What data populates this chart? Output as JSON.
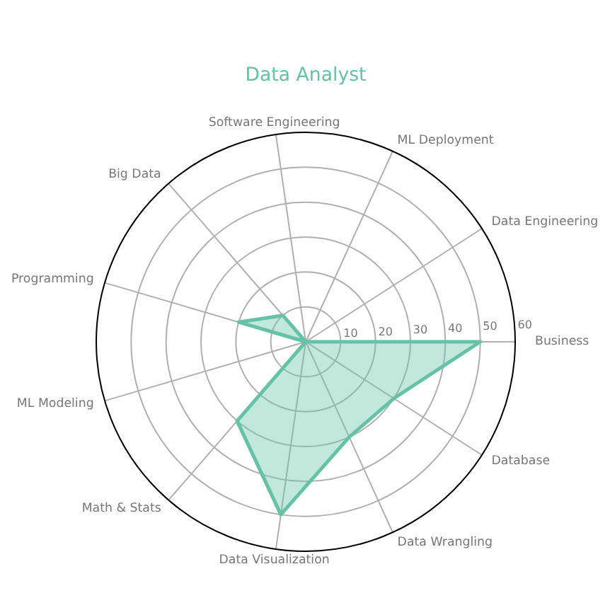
{
  "chart_data": {
    "type": "radar",
    "title": "Data Analyst",
    "categories": [
      "ML Deployment",
      "Data Engineering",
      "Business",
      "Database",
      "Data Wrangling",
      "Data Visualization",
      "Math & Stats",
      "ML Modeling",
      "Programming",
      "Big Data",
      "Software Engineering"
    ],
    "series": [
      {
        "color": "#66c2a5",
        "values": [
          0,
          0,
          50,
          30,
          30,
          50,
          30,
          0,
          20,
          10,
          0
        ]
      }
    ],
    "ylim": [
      0,
      60
    ],
    "yticks": [
      10,
      20,
      30,
      40,
      50,
      60
    ],
    "grid": true
  }
}
